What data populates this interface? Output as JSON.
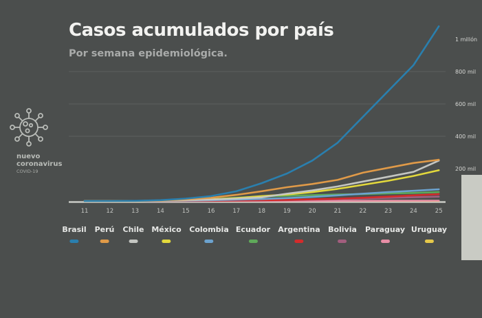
{
  "chart_data": {
    "type": "line",
    "title": "Casos acumulados por país",
    "subtitle": "Por semana epidemiológica.",
    "xlabel": "",
    "ylabel": "",
    "x": [
      11,
      12,
      13,
      14,
      15,
      16,
      17,
      18,
      19,
      20,
      21,
      22,
      23,
      24,
      25
    ],
    "xtick_labels": [
      "11",
      "12",
      "13",
      "14",
      "15",
      "16",
      "17",
      "18",
      "19",
      "20",
      "21",
      "22",
      "23",
      "24",
      "25"
    ],
    "ylim": [
      0,
      1100000
    ],
    "yticks": [
      200000,
      400000,
      600000,
      800000,
      1000000
    ],
    "ytick_labels": [
      "200 mil",
      "400 mil",
      "600 mil",
      "800 mil",
      "1 millón"
    ],
    "grid": true,
    "legend_position": "bottom",
    "series": [
      {
        "name": "Brasil",
        "color": "#2a7fae",
        "values": [
          0,
          0,
          1000,
          5000,
          15000,
          30000,
          60000,
          110000,
          170000,
          250000,
          360000,
          520000,
          680000,
          840000,
          1080000
        ]
      },
      {
        "name": "Perú",
        "color": "#e09a48",
        "values": [
          0,
          0,
          500,
          3000,
          10000,
          20000,
          38000,
          60000,
          85000,
          105000,
          130000,
          175000,
          205000,
          235000,
          255000
        ]
      },
      {
        "name": "Chile",
        "color": "#c4c6c2",
        "values": [
          0,
          0,
          500,
          2000,
          5000,
          9000,
          14000,
          22000,
          45000,
          65000,
          90000,
          120000,
          150000,
          180000,
          250000
        ]
      },
      {
        "name": "México",
        "color": "#e3d93c",
        "values": [
          0,
          0,
          300,
          2000,
          5000,
          10000,
          18000,
          30000,
          40000,
          55000,
          75000,
          100000,
          125000,
          155000,
          190000
        ]
      },
      {
        "name": "Colombia",
        "color": "#6ca3cf",
        "values": [
          0,
          0,
          300,
          1000,
          3000,
          5000,
          8000,
          12000,
          18000,
          25000,
          35000,
          45000,
          55000,
          63000,
          72000
        ]
      },
      {
        "name": "Ecuador",
        "color": "#5fa95a",
        "values": [
          0,
          0,
          300,
          1500,
          5000,
          10000,
          20000,
          28000,
          32000,
          36000,
          40000,
          43000,
          47000,
          50000,
          55000
        ]
      },
      {
        "name": "Argentina",
        "color": "#d32b2b",
        "values": [
          0,
          0,
          200,
          700,
          1500,
          2500,
          3500,
          5000,
          7000,
          10000,
          14000,
          20000,
          27000,
          35000,
          42000
        ]
      },
      {
        "name": "Bolivia",
        "color": "#a25e7e",
        "values": [
          0,
          0,
          50,
          200,
          500,
          900,
          1500,
          3000,
          5000,
          8000,
          11000,
          15000,
          19000,
          23000,
          27000
        ]
      },
      {
        "name": "Paraguay",
        "color": "#e88ea6",
        "values": [
          0,
          0,
          50,
          100,
          200,
          250,
          350,
          500,
          700,
          900,
          1100,
          1300,
          1500,
          1700,
          2000
        ]
      },
      {
        "name": "Uruguay",
        "color": "#e5c84a",
        "values": [
          0,
          0,
          50,
          200,
          400,
          500,
          600,
          700,
          750,
          800,
          820,
          850,
          880,
          900,
          930
        ]
      }
    ]
  },
  "logo": {
    "line1": "nuevo",
    "line2": "coronavirus",
    "line3": "COVID-19"
  }
}
